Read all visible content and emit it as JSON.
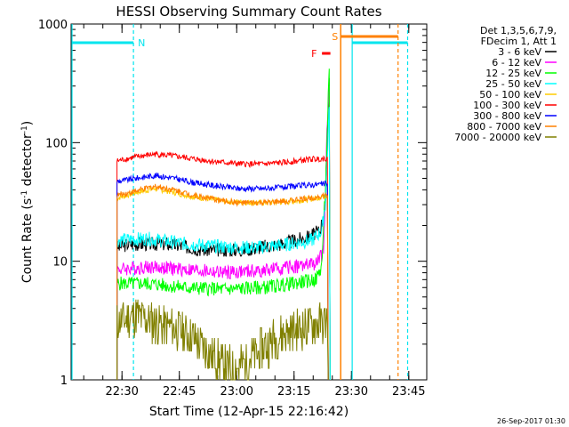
{
  "chart_data": {
    "type": "line",
    "title": "HESSI Observing Summary Count Rates",
    "xlabel": "Start Time (12-Apr-15 22:16:42)",
    "ylabel_main": "Count Rate (s",
    "ylabel_sup1": "-1",
    "ylabel_mid": " detector",
    "ylabel_sup2": "-1",
    "ylabel_end": ")",
    "y_scale": "log",
    "ylim": [
      1,
      1000
    ],
    "xlim_minutes_after_2216_42": [
      0,
      93
    ],
    "x_ticks": [
      {
        "label": "22:30",
        "t": 13.3
      },
      {
        "label": "22:45",
        "t": 28.3
      },
      {
        "label": "23:00",
        "t": 43.3
      },
      {
        "label": "23:15",
        "t": 58.3
      },
      {
        "label": "23:30",
        "t": 73.3
      },
      {
        "label": "23:45",
        "t": 88.3
      }
    ],
    "y_ticks": [
      {
        "label": "1",
        "v": 1
      },
      {
        "label": "10",
        "v": 10
      },
      {
        "label": "100",
        "v": 100
      },
      {
        "label": "1000",
        "v": 1000
      }
    ],
    "legend_header": [
      "Det 1,3,5,6,7,9,",
      "FDecim 1, Att 1"
    ],
    "series": [
      {
        "name": "3 - 6 keV",
        "color": "#000000",
        "points": [
          [
            12,
            13
          ],
          [
            15,
            14
          ],
          [
            25,
            14
          ],
          [
            35,
            12.5
          ],
          [
            45,
            12.5
          ],
          [
            55,
            14
          ],
          [
            62,
            16
          ],
          [
            65,
            18
          ],
          [
            66.5,
            28
          ],
          [
            67.5,
            350
          ]
        ]
      },
      {
        "name": "6 - 12 keV",
        "color": "#ff00ff",
        "points": [
          [
            12,
            8.5
          ],
          [
            20,
            9
          ],
          [
            30,
            8.5
          ],
          [
            40,
            8
          ],
          [
            50,
            8.3
          ],
          [
            58,
            9
          ],
          [
            64,
            9.5
          ],
          [
            66,
            12
          ],
          [
            67,
            150
          ],
          [
            67.5,
            300
          ]
        ]
      },
      {
        "name": "12 - 25 keV",
        "color": "#00ff00",
        "points": [
          [
            12,
            6.5
          ],
          [
            20,
            6.5
          ],
          [
            30,
            6
          ],
          [
            40,
            5.8
          ],
          [
            50,
            6
          ],
          [
            58,
            6.5
          ],
          [
            64,
            7
          ],
          [
            65.5,
            9
          ],
          [
            66.5,
            40
          ],
          [
            67.5,
            420
          ]
        ]
      },
      {
        "name": "25 - 50 keV",
        "color": "#00ffff",
        "points": [
          [
            12,
            15
          ],
          [
            20,
            15.5
          ],
          [
            30,
            14
          ],
          [
            40,
            13.2
          ],
          [
            48,
            13
          ],
          [
            56,
            13.8
          ],
          [
            63,
            15
          ],
          [
            65.5,
            18
          ],
          [
            66.5,
            30
          ],
          [
            67.5,
            200
          ]
        ]
      },
      {
        "name": "50 - 100 keV",
        "color": "#ffcc00",
        "points": [
          [
            12,
            34
          ],
          [
            17,
            38
          ],
          [
            22,
            41
          ],
          [
            27,
            38
          ],
          [
            32,
            35
          ],
          [
            40,
            32
          ],
          [
            50,
            31
          ],
          [
            58,
            32
          ],
          [
            64,
            34
          ],
          [
            67,
            36
          ]
        ]
      },
      {
        "name": "100 - 300 keV",
        "color": "#ff0000",
        "points": [
          [
            12,
            70
          ],
          [
            17,
            76
          ],
          [
            22,
            80
          ],
          [
            27,
            77
          ],
          [
            32,
            73
          ],
          [
            38,
            69
          ],
          [
            44,
            66
          ],
          [
            50,
            66
          ],
          [
            56,
            68
          ],
          [
            62,
            72
          ],
          [
            67,
            74
          ]
        ]
      },
      {
        "name": "300 - 800 keV",
        "color": "#0000ff",
        "points": [
          [
            12,
            47
          ],
          [
            17,
            50
          ],
          [
            22,
            53
          ],
          [
            27,
            50
          ],
          [
            32,
            46
          ],
          [
            38,
            43
          ],
          [
            44,
            41
          ],
          [
            50,
            41
          ],
          [
            56,
            42
          ],
          [
            62,
            44
          ],
          [
            67,
            45
          ]
        ]
      },
      {
        "name": "800 - 7000 keV",
        "color": "#ff8000",
        "points": [
          [
            12,
            36
          ],
          [
            17,
            39
          ],
          [
            22,
            43
          ],
          [
            27,
            40
          ],
          [
            32,
            36
          ],
          [
            38,
            33
          ],
          [
            44,
            31
          ],
          [
            50,
            31
          ],
          [
            56,
            32
          ],
          [
            62,
            34
          ],
          [
            67,
            36
          ]
        ]
      },
      {
        "name": "7000 - 20000 keV",
        "color": "#808000",
        "points": [
          [
            12,
            3
          ],
          [
            17,
            3.5
          ],
          [
            22,
            3
          ],
          [
            27,
            2.7
          ],
          [
            32,
            2.3
          ],
          [
            36,
            1.7
          ],
          [
            40,
            1.3
          ],
          [
            44,
            1.3
          ],
          [
            48,
            1.6
          ],
          [
            52,
            2.1
          ],
          [
            56,
            2.5
          ],
          [
            60,
            2.7
          ],
          [
            64,
            3
          ],
          [
            67,
            3
          ]
        ]
      }
    ],
    "annotations": [
      {
        "label": "N",
        "color": "#00e5ee"
      },
      {
        "label": "S",
        "color": "#ff8000"
      },
      {
        "label": "F",
        "color": "#ff0000"
      }
    ],
    "timestamp": "26-Sep-2017 01:30"
  }
}
